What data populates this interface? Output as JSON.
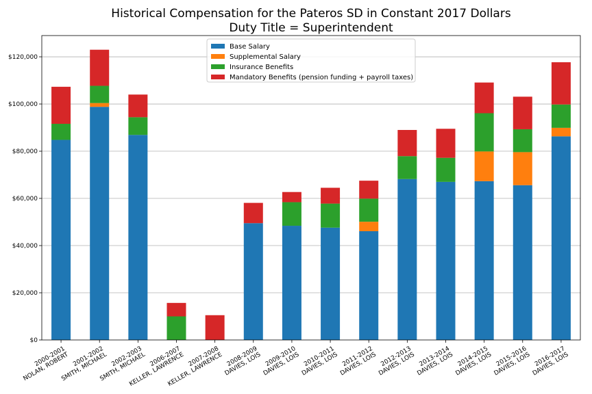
{
  "chart_data": {
    "type": "bar",
    "stacked": true,
    "title": "Historical Compensation for the Pateros SD in Constant 2017 Dollars",
    "subtitle": "Duty Title = Superintendent",
    "xlabel": "",
    "ylabel": "",
    "ylim": [
      0,
      129000
    ],
    "yticks": [
      0,
      20000,
      40000,
      60000,
      80000,
      100000,
      120000
    ],
    "ytick_labels": [
      "$0",
      "$20,000",
      "$40,000",
      "$60,000",
      "$80,000",
      "$100,000",
      "$120,000"
    ],
    "grid": "horizontal",
    "legend_position": "top-center",
    "categories": [
      [
        "2000-2001",
        "NOLAN, ROBERT"
      ],
      [
        "2001-2002",
        "SMITH, MICHAEL"
      ],
      [
        "2002-2003",
        "SMITH, MICHAEL"
      ],
      [
        "2006-2007",
        "KELLER, LAWRENCE"
      ],
      [
        "2007-2008",
        "KELLER, LAWRENCE"
      ],
      [
        "2008-2009",
        "DAVIES, LOIS"
      ],
      [
        "2009-2010",
        "DAVIES, LOIS"
      ],
      [
        "2010-2011",
        "DAVIES, LOIS"
      ],
      [
        "2011-2012",
        "DAVIES, LOIS"
      ],
      [
        "2012-2013",
        "DAVIES, LOIS"
      ],
      [
        "2013-2014",
        "DAVIES, LOIS"
      ],
      [
        "2014-2015",
        "DAVIES, LOIS"
      ],
      [
        "2015-2016",
        "DAVIES, LOIS"
      ],
      [
        "2016-2017",
        "DAVIES, LOIS"
      ]
    ],
    "series": [
      {
        "name": "Base Salary",
        "color": "#1f77b4",
        "values": [
          84800,
          98800,
          86900,
          0,
          0,
          49500,
          48400,
          47600,
          46100,
          68200,
          67000,
          67300,
          65600,
          86300
        ]
      },
      {
        "name": "Supplemental Salary",
        "color": "#ff7f0e",
        "values": [
          0,
          1600,
          0,
          0,
          0,
          0,
          0,
          0,
          4000,
          0,
          0,
          12600,
          14000,
          3600
        ]
      },
      {
        "name": "Insurance Benefits",
        "color": "#2ca02c",
        "values": [
          6800,
          7300,
          7500,
          10000,
          0,
          0,
          10000,
          10200,
          9800,
          9700,
          10200,
          16200,
          9700,
          9900
        ]
      },
      {
        "name": "Mandatory Benefits (pension funding + payroll taxes)",
        "color": "#d62728",
        "values": [
          15700,
          15300,
          9600,
          5700,
          10500,
          8600,
          4300,
          6700,
          7600,
          11100,
          12300,
          13000,
          13800,
          17900
        ]
      }
    ]
  }
}
